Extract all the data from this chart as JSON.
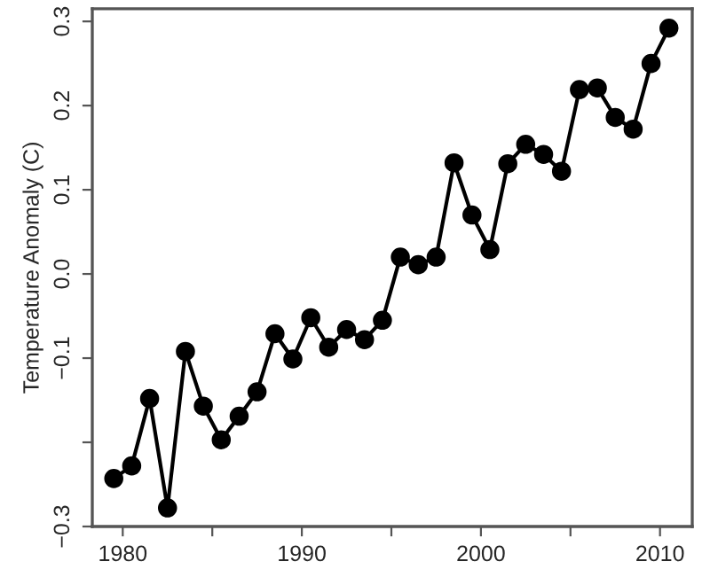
{
  "chart_data": {
    "type": "line",
    "ylabel": "Temperature Anomaly (C)",
    "x": [
      1979.5,
      1980.5,
      1981.5,
      1982.5,
      1983.5,
      1984.5,
      1985.5,
      1986.5,
      1987.5,
      1988.5,
      1989.5,
      1990.5,
      1991.5,
      1992.5,
      1993.5,
      1994.5,
      1995.5,
      1996.5,
      1997.5,
      1998.5,
      1999.5,
      2000.5,
      2001.5,
      2002.5,
      2003.5,
      2004.5,
      2005.5,
      2006.5,
      2007.5,
      2008.5,
      2009.5,
      2010.5
    ],
    "series": [
      {
        "color": "#000000",
        "values": [
          -0.243,
          -0.228,
          -0.148,
          -0.278,
          -0.092,
          -0.157,
          -0.197,
          -0.169,
          -0.14,
          -0.071,
          -0.101,
          -0.052,
          -0.087,
          -0.066,
          -0.078,
          -0.055,
          0.02,
          0.011,
          0.02,
          0.132,
          0.07,
          0.029,
          0.131,
          0.154,
          0.142,
          0.122,
          0.219,
          0.221,
          0.186,
          0.172,
          0.25,
          0.292
        ]
      }
    ],
    "xlim": [
      1978.3,
      2011.8
    ],
    "ylim": [
      -0.3,
      0.315
    ],
    "xticks": [
      1980,
      {
        "value": 1985,
        "label": null
      },
      1990,
      {
        "value": 1995,
        "label": null
      },
      2000,
      {
        "value": 2005,
        "label": null
      },
      2010
    ],
    "yticks": [
      -0.3,
      {
        "value": -0.2,
        "label": null
      },
      -0.1,
      {
        "value": 0,
        "label": "0.0"
      },
      0.1,
      0.2,
      0.3
    ],
    "marker": "circle",
    "line_style": "solid",
    "grid": false,
    "legend": false
  }
}
